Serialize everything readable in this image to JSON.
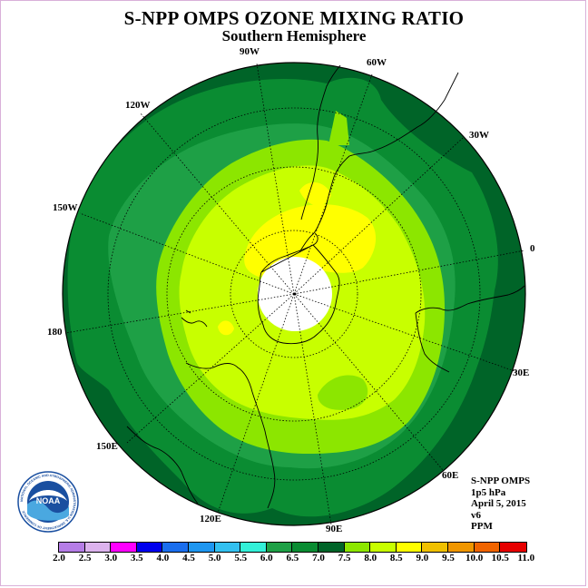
{
  "title": "S-NPP OMPS OZONE MIXING RATIO",
  "subtitle": "Southern Hemisphere",
  "longitude_labels": {
    "lon_90w": "90W",
    "lon_60w": "60W",
    "lon_120w": "120W",
    "lon_30w": "30W",
    "lon_150w": "150W",
    "lon_0": "0",
    "lon_180": "180",
    "lon_30e": "30E",
    "lon_150e": "150E",
    "lon_60e": "60E",
    "lon_120e": "120E",
    "lon_90e": "90E"
  },
  "info": {
    "instrument": "S-NPP OMPS",
    "level": "1p5 hPa",
    "date": "April 5, 2015",
    "version": "v6",
    "unit": "PPM"
  },
  "logo": {
    "text": "NOAA",
    "ring_text": "NATIONAL OCEANIC AND ATMOSPHERIC ADMINISTRATION U.S. DEPARTMENT OF COMMERCE"
  },
  "colorbar": {
    "ticks": [
      "2.0",
      "2.5",
      "3.0",
      "3.5",
      "4.0",
      "4.5",
      "5.0",
      "5.5",
      "6.0",
      "6.5",
      "7.0",
      "7.5",
      "8.0",
      "8.5",
      "9.0",
      "9.5",
      "10.0",
      "10.5",
      "11.0"
    ],
    "colors": [
      "#b57de6",
      "#dcb3ee",
      "#ff00ff",
      "#0000ee",
      "#1a6eee",
      "#1e96f0",
      "#33c0f0",
      "#33f0d8",
      "#1ea046",
      "#0a8c32",
      "#006428",
      "#8ce600",
      "#c8ff00",
      "#ffff00",
      "#f0c000",
      "#f09600",
      "#f06400",
      "#e60000",
      "#8c5a3c"
    ]
  },
  "map_colors": {
    "dark_green": "#006428",
    "mid_green": "#0a8c32",
    "light_green": "#1ea046",
    "lime": "#8ce600",
    "yellow_green": "#c8ff00",
    "yellow": "#ffff00",
    "pole": "#ffffff"
  }
}
